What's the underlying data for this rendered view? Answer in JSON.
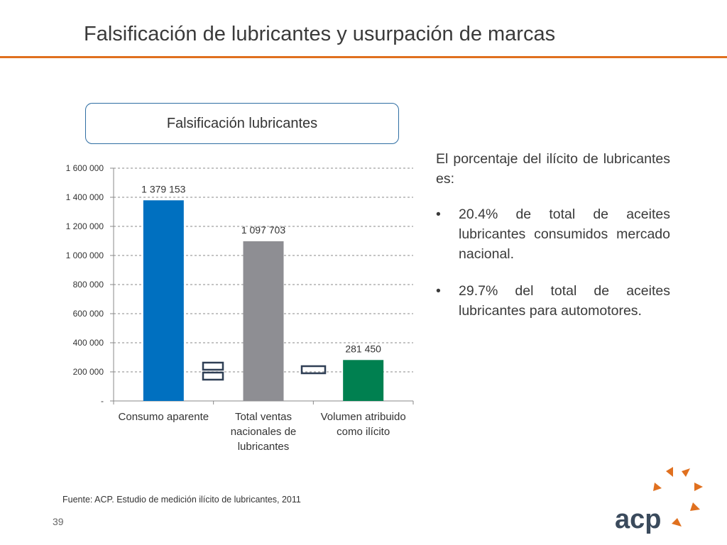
{
  "slide": {
    "title": "Falsificación de lubricantes y usurpación de marcas",
    "page_number": "39",
    "source": "Fuente: ACP.  Estudio de medición  ilícito de lubricantes, 2011",
    "logo_text": "acp"
  },
  "chart_box": {
    "title": "Falsificación lubricantes"
  },
  "right_panel": {
    "intro": "El porcentaje del ilícito de lubricantes es:",
    "bullets": [
      "20.4% de  total de aceites lubricantes consumidos mercado nacional.",
      "29.7% del total de aceites lubricantes para automotores."
    ]
  },
  "chart_data": {
    "type": "bar",
    "categories": [
      [
        "Consumo aparente"
      ],
      [
        "Total ventas",
        "nacionales de",
        "lubricantes"
      ],
      [
        "Volumen atribuido",
        "como ilícito"
      ]
    ],
    "values": [
      1379153,
      1097703,
      281450
    ],
    "value_labels": [
      "1 379 153",
      "1 097 703",
      "281 450"
    ],
    "colors": [
      "#0070c0",
      "#8e8e93",
      "#008050"
    ],
    "ylim": [
      0,
      1600000
    ],
    "yticks": [
      0,
      200000,
      400000,
      600000,
      800000,
      1000000,
      1200000,
      1400000,
      1600000
    ],
    "ytick_labels": [
      "-",
      "200 000",
      "400 000",
      "600 000",
      "800 000",
      "1 000 000",
      "1 200 000",
      "1 400 000",
      "1 600 000"
    ],
    "grid": true,
    "operators": [
      ">=",
      ">"
    ],
    "title": "",
    "xlabel": "",
    "ylabel": ""
  }
}
